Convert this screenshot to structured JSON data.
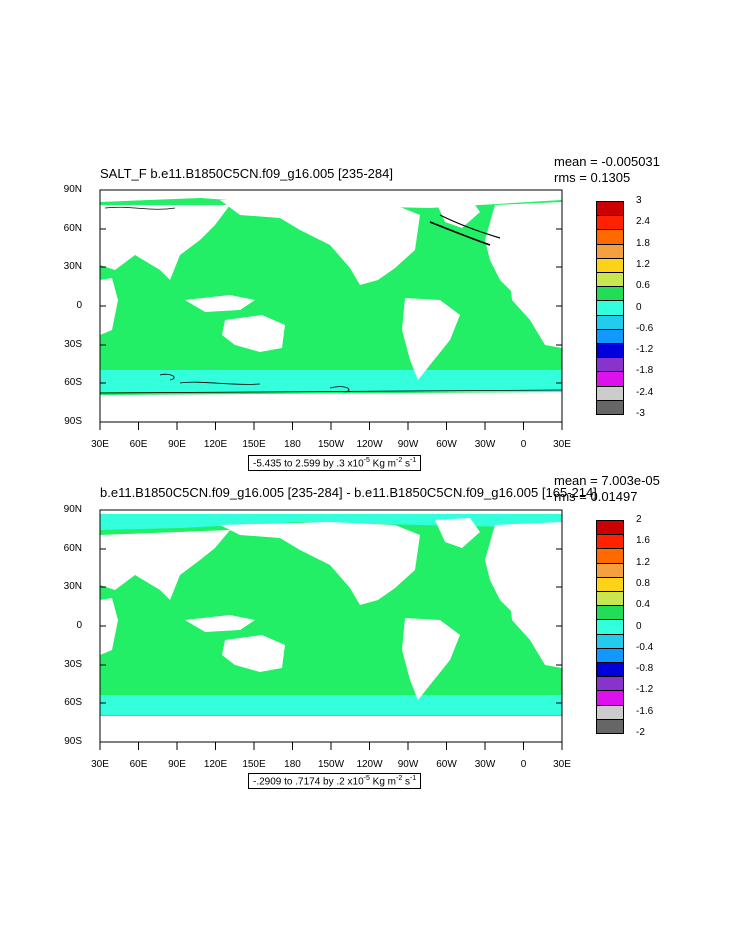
{
  "panels": [
    {
      "title": "SALT_F b.e11.B1850C5CN.f09_g16.005 [235-284]",
      "mean": "mean = -0.005031",
      "rms": "rms = 0.1305",
      "range_text": "-5.435 to 2.599 by .3 x10",
      "range_exp": "-5",
      "range_units": " Kg m",
      "range_units_exp": "-2",
      "range_s": " s",
      "range_s_exp": "-1",
      "lat_labels": [
        "90N",
        "60N",
        "30N",
        "0",
        "30S",
        "60S",
        "90S"
      ],
      "lon_labels": [
        "30E",
        "60E",
        "90E",
        "120E",
        "150E",
        "180",
        "150W",
        "120W",
        "90W",
        "60W",
        "30W",
        "0",
        "30E"
      ],
      "legend_levels": [
        "3",
        "2.4",
        "1.8",
        "1.2",
        "0.6",
        "0",
        "-0.6",
        "-1.2",
        "-1.8",
        "-2.4",
        "-3"
      ],
      "legend_colors": [
        "#cc0000",
        "#ff2200",
        "#ff6a00",
        "#f5a040",
        "#ffd21a",
        "#c8e650",
        "#22dd55",
        "#33ffdd",
        "#22ccee",
        "#1199ff",
        "#0000dd",
        "#8833cc",
        "#dd11ee",
        "#cccccc",
        "#666666"
      ]
    },
    {
      "title": "b.e11.B1850C5CN.f09_g16.005 [235-284] - b.e11.B1850C5CN.f09_g16.005 [165-214]",
      "mean": "mean = 7.003e-05",
      "rms": "rms = 0.01497",
      "range_text": "-.2909 to .7174 by .2 x10",
      "range_exp": "-5",
      "range_units": " Kg m",
      "range_units_exp": "-2",
      "range_s": " s",
      "range_s_exp": "-1",
      "lat_labels": [
        "90N",
        "60N",
        "30N",
        "0",
        "30S",
        "60S",
        "90S"
      ],
      "lon_labels": [
        "30E",
        "60E",
        "90E",
        "120E",
        "150E",
        "180",
        "150W",
        "120W",
        "90W",
        "60W",
        "30W",
        "0",
        "30E"
      ],
      "legend_levels": [
        "2",
        "1.6",
        "1.2",
        "0.8",
        "0.4",
        "0",
        "-0.4",
        "-0.8",
        "-1.2",
        "-1.6",
        "-2"
      ],
      "legend_colors": [
        "#cc0000",
        "#ff2200",
        "#ff6a00",
        "#f5a040",
        "#ffd21a",
        "#c8e650",
        "#22dd55",
        "#33ffdd",
        "#22ccee",
        "#1199ff",
        "#0000dd",
        "#8833cc",
        "#dd11ee",
        "#cccccc",
        "#666666"
      ]
    }
  ],
  "colors": {
    "ocean": "#22ee66",
    "ocean_light": "#33ffdd",
    "land": "#ffffff"
  }
}
